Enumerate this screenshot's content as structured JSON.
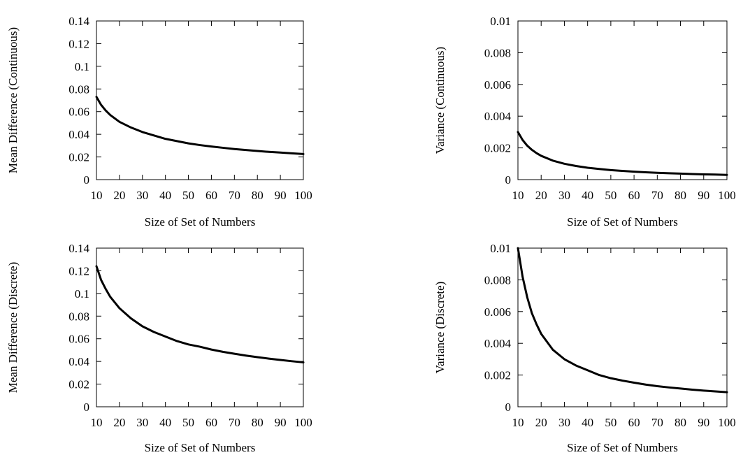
{
  "chart_data": [
    {
      "id": "mean-continuous",
      "type": "line",
      "xlabel": "Size of Set of Numbers",
      "ylabel": "Mean Difference (Continuous)",
      "xlim": [
        10,
        100
      ],
      "ylim": [
        0,
        0.14
      ],
      "x_ticks": [
        "10",
        "20",
        "30",
        "40",
        "50",
        "60",
        "70",
        "80",
        "90",
        "100"
      ],
      "y_ticks": [
        "0",
        "0.02",
        "0.04",
        "0.06",
        "0.08",
        "0.1",
        "0.12",
        "0.14"
      ],
      "grid": false,
      "series": [
        {
          "x": [
            10,
            12,
            14,
            16,
            18,
            20,
            25,
            30,
            35,
            40,
            45,
            50,
            55,
            60,
            65,
            70,
            75,
            80,
            85,
            90,
            95,
            100
          ],
          "y": [
            0.073,
            0.066,
            0.061,
            0.057,
            0.054,
            0.051,
            0.046,
            0.042,
            0.039,
            0.036,
            0.034,
            0.032,
            0.0305,
            0.0292,
            0.0281,
            0.027,
            0.0261,
            0.0253,
            0.0245,
            0.0239,
            0.0232,
            0.0226
          ]
        }
      ]
    },
    {
      "id": "variance-continuous",
      "type": "line",
      "xlabel": "Size of Set of Numbers",
      "ylabel": "Variance (Continuous)",
      "xlim": [
        10,
        100
      ],
      "ylim": [
        0,
        0.01
      ],
      "x_ticks": [
        "10",
        "20",
        "30",
        "40",
        "50",
        "60",
        "70",
        "80",
        "90",
        "100"
      ],
      "y_ticks": [
        "0",
        "0.002",
        "0.004",
        "0.006",
        "0.008",
        "0.01"
      ],
      "grid": false,
      "series": [
        {
          "x": [
            10,
            12,
            14,
            16,
            18,
            20,
            25,
            30,
            35,
            40,
            45,
            50,
            55,
            60,
            65,
            70,
            75,
            80,
            85,
            90,
            95,
            100
          ],
          "y": [
            0.003,
            0.0025,
            0.00214,
            0.00188,
            0.00167,
            0.0015,
            0.0012,
            0.001,
            0.00086,
            0.00075,
            0.00067,
            0.0006,
            0.00055,
            0.0005,
            0.00046,
            0.00043,
            0.0004,
            0.00038,
            0.00035,
            0.00033,
            0.00032,
            0.0003
          ]
        }
      ]
    },
    {
      "id": "mean-discrete",
      "type": "line",
      "xlabel": "Size of Set of Numbers",
      "ylabel": "Mean Difference (Discrete)",
      "xlim": [
        10,
        100
      ],
      "ylim": [
        0,
        0.14
      ],
      "x_ticks": [
        "10",
        "20",
        "30",
        "40",
        "50",
        "60",
        "70",
        "80",
        "90",
        "100"
      ],
      "y_ticks": [
        "0",
        "0.02",
        "0.04",
        "0.06",
        "0.08",
        "0.1",
        "0.12",
        "0.14"
      ],
      "grid": false,
      "series": [
        {
          "x": [
            10,
            12,
            14,
            16,
            18,
            20,
            25,
            30,
            35,
            40,
            45,
            50,
            55,
            60,
            65,
            70,
            75,
            80,
            85,
            90,
            95,
            100
          ],
          "y": [
            0.124,
            0.112,
            0.104,
            0.097,
            0.092,
            0.087,
            0.078,
            0.071,
            0.066,
            0.062,
            0.058,
            0.055,
            0.053,
            0.0505,
            0.0485,
            0.0468,
            0.0452,
            0.0438,
            0.0425,
            0.0413,
            0.0402,
            0.0392
          ]
        }
      ]
    },
    {
      "id": "variance-discrete",
      "type": "line",
      "xlabel": "Size of Set of Numbers",
      "ylabel": "Variance (Discrete)",
      "xlim": [
        10,
        100
      ],
      "ylim": [
        0,
        0.01
      ],
      "x_ticks": [
        "10",
        "20",
        "30",
        "40",
        "50",
        "60",
        "70",
        "80",
        "90",
        "100"
      ],
      "y_ticks": [
        "0",
        "0.002",
        "0.004",
        "0.006",
        "0.008",
        "0.01"
      ],
      "grid": false,
      "series": [
        {
          "x": [
            10,
            12,
            14,
            16,
            18,
            20,
            25,
            30,
            35,
            40,
            45,
            50,
            55,
            60,
            65,
            70,
            75,
            80,
            85,
            90,
            95,
            100
          ],
          "y": [
            0.01,
            0.0082,
            0.0069,
            0.0059,
            0.0052,
            0.0046,
            0.0036,
            0.003,
            0.0026,
            0.0023,
            0.002,
            0.0018,
            0.00165,
            0.00152,
            0.0014,
            0.0013,
            0.00122,
            0.00115,
            0.00108,
            0.00102,
            0.00097,
            0.00092
          ]
        }
      ]
    }
  ]
}
